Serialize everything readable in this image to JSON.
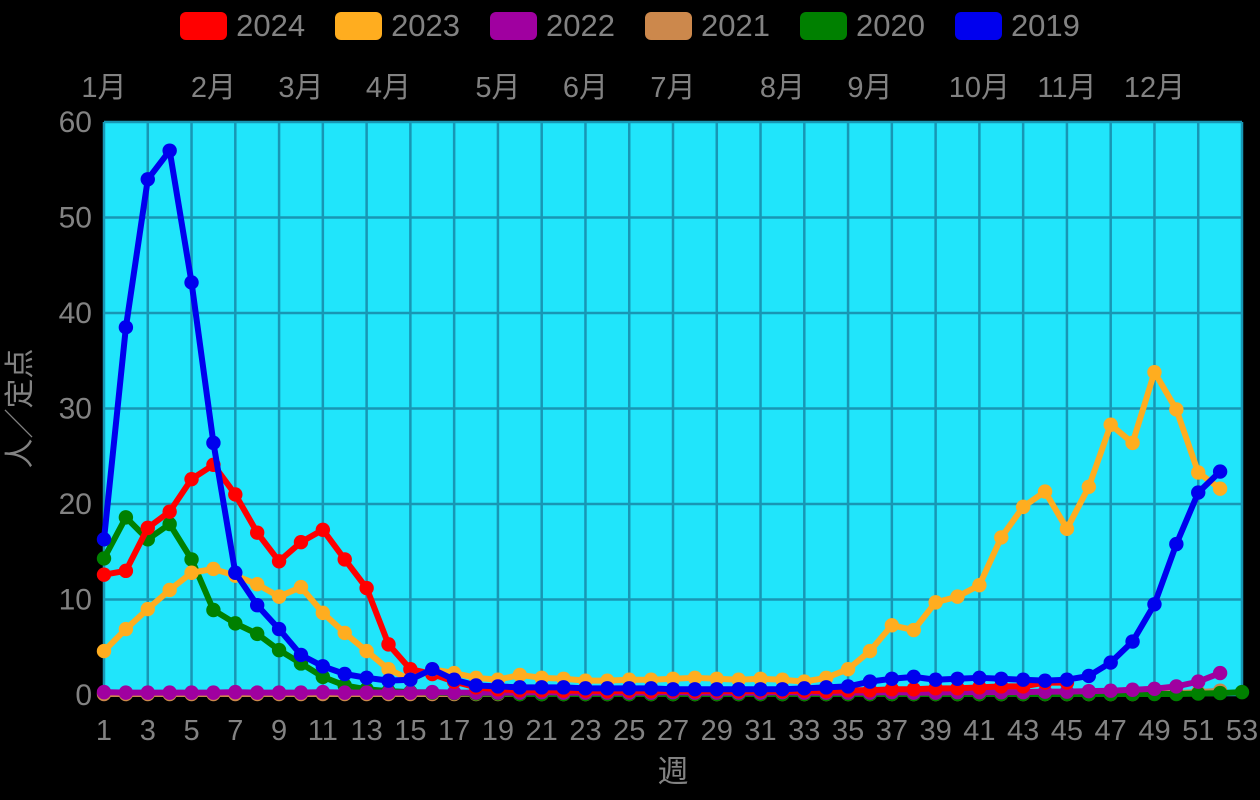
{
  "page": {
    "background": "#000000",
    "text_color": "#828282"
  },
  "legend": {
    "items": [
      {
        "label": "2024",
        "color": "#FF0000"
      },
      {
        "label": "2023",
        "color": "#FFAD1F"
      },
      {
        "label": "2022",
        "color": "#A000A0"
      },
      {
        "label": "2021",
        "color": "#CC884C"
      },
      {
        "label": "2020",
        "color": "#008000"
      },
      {
        "label": "2019",
        "color": "#0000EE"
      }
    ]
  },
  "chart_data": {
    "type": "line",
    "title": "",
    "xlabel": "週",
    "ylabel": "人／定点",
    "xlim": [
      1,
      53
    ],
    "ylim": [
      0,
      60
    ],
    "x_ticks": [
      1,
      3,
      5,
      7,
      9,
      11,
      13,
      15,
      17,
      19,
      21,
      23,
      25,
      27,
      29,
      31,
      33,
      35,
      37,
      39,
      41,
      43,
      45,
      47,
      49,
      51,
      53
    ],
    "y_ticks": [
      0,
      10,
      20,
      30,
      40,
      50,
      60
    ],
    "grid": true,
    "plot_bg": "#20E5FB",
    "grid_color": "#1896B4",
    "legend_position": "top",
    "month_ticks": [
      {
        "label": "1月",
        "week": 1
      },
      {
        "label": "2月",
        "week": 6
      },
      {
        "label": "3月",
        "week": 10
      },
      {
        "label": "4月",
        "week": 14
      },
      {
        "label": "5月",
        "week": 19
      },
      {
        "label": "6月",
        "week": 23
      },
      {
        "label": "7月",
        "week": 27
      },
      {
        "label": "8月",
        "week": 32
      },
      {
        "label": "9月",
        "week": 36
      },
      {
        "label": "10月",
        "week": 41
      },
      {
        "label": "11月",
        "week": 45
      },
      {
        "label": "12月",
        "week": 49
      }
    ],
    "x": [
      1,
      2,
      3,
      4,
      5,
      6,
      7,
      8,
      9,
      10,
      11,
      12,
      13,
      14,
      15,
      16,
      17,
      18,
      19,
      20,
      21,
      22,
      23,
      24,
      25,
      26,
      27,
      28,
      29,
      30,
      31,
      32,
      33,
      34,
      35,
      36,
      37,
      38,
      39,
      40,
      41,
      42,
      43,
      44,
      45,
      46,
      47,
      48,
      49,
      50,
      51,
      52,
      53
    ],
    "draw_order": [
      "2021",
      "2020",
      "2022",
      "2024",
      "2023",
      "2019"
    ],
    "series": [
      {
        "name": "2024",
        "color": "#FF0000",
        "values": [
          12.6,
          13.0,
          17.5,
          19.2,
          22.6,
          24.1,
          21.0,
          17.0,
          14.0,
          16.0,
          17.3,
          14.2,
          11.2,
          5.3,
          2.7,
          2.2,
          1.4,
          0.8,
          0.6,
          0.5,
          0.5,
          0.45,
          0.45,
          0.4,
          0.45,
          0.4,
          0.45,
          0.4,
          0.45,
          0.4,
          0.45,
          0.4,
          0.45,
          0.4,
          0.5,
          0.5,
          0.6,
          0.6,
          0.7,
          0.7,
          0.8,
          0.9,
          0.9,
          1.3,
          1.3,
          null,
          null,
          null,
          null,
          null,
          null,
          null,
          null
        ]
      },
      {
        "name": "2023",
        "color": "#FFAD1F",
        "values": [
          4.6,
          6.9,
          9.0,
          11.0,
          12.8,
          13.2,
          12.5,
          11.6,
          10.3,
          11.3,
          8.6,
          6.5,
          4.6,
          2.7,
          1.6,
          2.7,
          2.3,
          1.8,
          1.6,
          2.1,
          1.8,
          1.7,
          1.5,
          1.5,
          1.6,
          1.6,
          1.7,
          1.8,
          1.7,
          1.6,
          1.7,
          1.6,
          1.4,
          1.8,
          2.7,
          4.6,
          7.3,
          6.8,
          9.7,
          10.3,
          11.5,
          16.5,
          19.7,
          21.3,
          17.4,
          21.8,
          28.3,
          26.4,
          33.8,
          29.9,
          23.3,
          21.6,
          null
        ]
      },
      {
        "name": "2022",
        "color": "#A000A0",
        "values": [
          0.3,
          0.25,
          0.25,
          0.25,
          0.25,
          0.25,
          0.3,
          0.25,
          0.25,
          0.25,
          0.3,
          0.25,
          0.25,
          0.25,
          0.25,
          0.3,
          0.25,
          0.25,
          0.25,
          0.25,
          0.3,
          0.25,
          0.25,
          0.25,
          0.25,
          0.25,
          0.3,
          0.25,
          0.25,
          0.25,
          0.25,
          0.3,
          0.25,
          0.25,
          0.25,
          0.25,
          0.3,
          0.25,
          0.25,
          0.3,
          0.3,
          0.3,
          0.3,
          0.35,
          0.35,
          0.4,
          0.45,
          0.55,
          0.65,
          0.9,
          1.4,
          2.3,
          null
        ]
      },
      {
        "name": "2021",
        "color": "#CC884C",
        "values": [
          0.1,
          0.1,
          0.1,
          0.1,
          0.1,
          0.1,
          0.1,
          0.1,
          0.1,
          0.1,
          0.1,
          0.1,
          0.1,
          0.1,
          0.1,
          0.1,
          0.1,
          0.1,
          0.1,
          0.1,
          0.1,
          0.1,
          0.1,
          0.1,
          0.1,
          0.1,
          0.1,
          0.1,
          0.1,
          0.1,
          0.1,
          0.1,
          0.1,
          0.1,
          0.1,
          0.1,
          0.1,
          0.1,
          0.1,
          0.1,
          0.1,
          0.1,
          0.1,
          0.1,
          0.1,
          0.1,
          0.1,
          0.1,
          0.15,
          0.2,
          0.3,
          0.45,
          null
        ]
      },
      {
        "name": "2020",
        "color": "#008000",
        "values": [
          14.3,
          18.6,
          16.3,
          17.9,
          14.2,
          8.9,
          7.5,
          6.4,
          4.7,
          3.3,
          1.9,
          1.0,
          0.6,
          0.4,
          0.3,
          0.25,
          0.2,
          0.15,
          0.15,
          0.1,
          0.1,
          0.1,
          0.1,
          0.1,
          0.1,
          0.1,
          0.1,
          0.1,
          0.1,
          0.1,
          0.1,
          0.1,
          0.1,
          0.1,
          0.1,
          0.1,
          0.1,
          0.1,
          0.1,
          0.1,
          0.1,
          0.1,
          0.1,
          0.1,
          0.1,
          0.1,
          0.1,
          0.1,
          0.1,
          0.1,
          0.15,
          0.2,
          0.3
        ]
      },
      {
        "name": "2019",
        "color": "#0000EE",
        "values": [
          16.3,
          38.5,
          54,
          57,
          43.2,
          26.4,
          12.8,
          9.4,
          6.9,
          4.2,
          3.0,
          2.2,
          1.8,
          1.5,
          1.6,
          2.7,
          1.6,
          1.0,
          0.9,
          0.8,
          0.8,
          0.8,
          0.7,
          0.7,
          0.7,
          0.7,
          0.6,
          0.6,
          0.6,
          0.6,
          0.6,
          0.6,
          0.7,
          0.8,
          0.9,
          1.4,
          1.7,
          1.9,
          1.6,
          1.7,
          1.8,
          1.7,
          1.6,
          1.5,
          1.6,
          2.0,
          3.4,
          5.6,
          9.5,
          15.8,
          21.2,
          23.4,
          null
        ]
      }
    ]
  }
}
